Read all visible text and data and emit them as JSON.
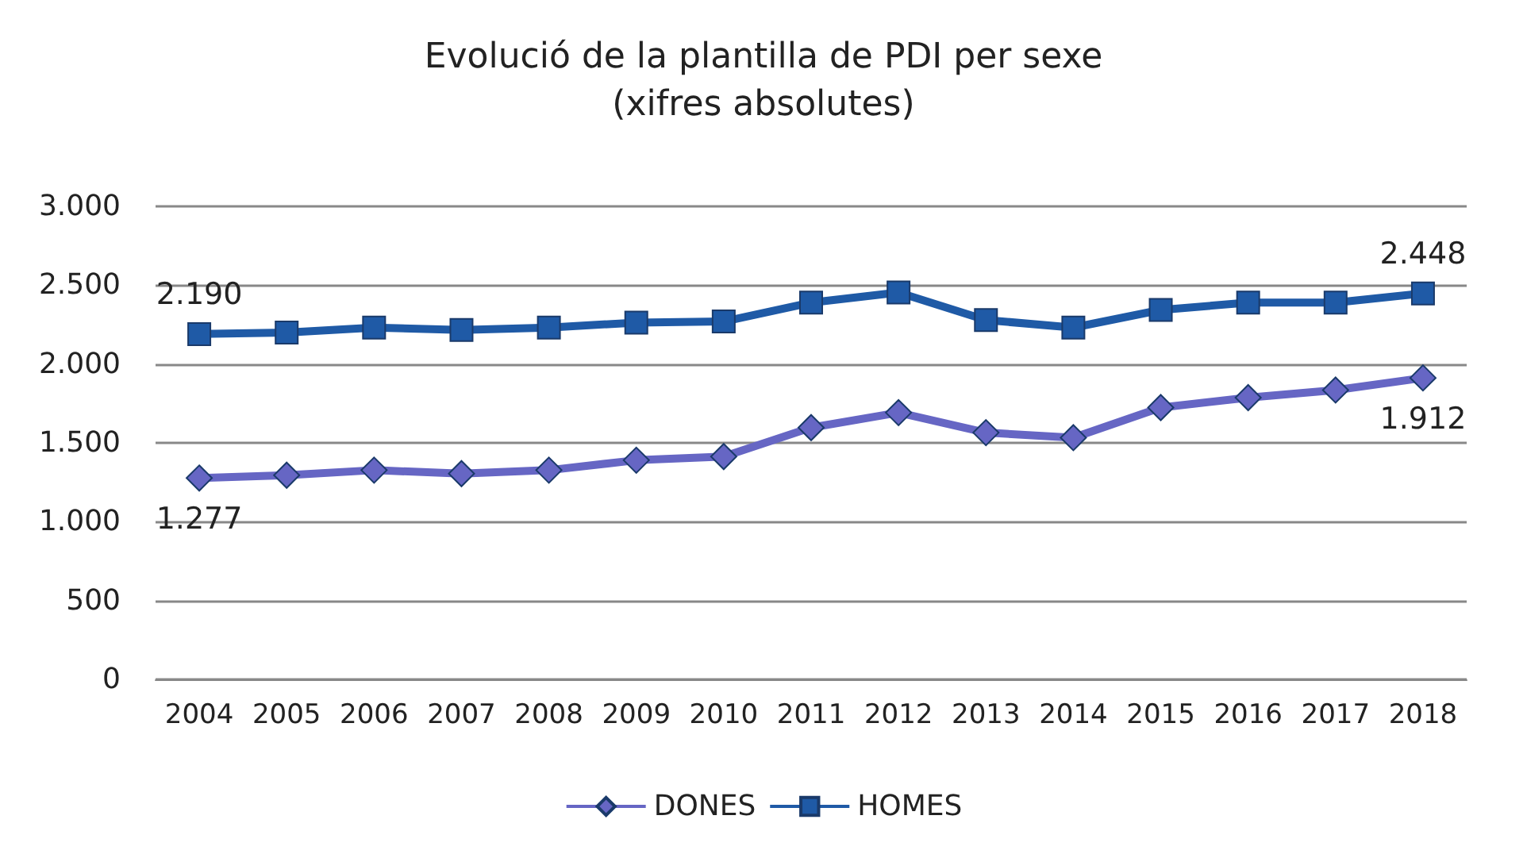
{
  "chart_data": {
    "type": "line",
    "title": "Evolució de la plantilla de PDI per sexe",
    "subtitle": "(xifres absolutes)",
    "categories": [
      "2004",
      "2005",
      "2006",
      "2007",
      "2008",
      "2009",
      "2010",
      "2011",
      "2012",
      "2013",
      "2014",
      "2015",
      "2016",
      "2017",
      "2018"
    ],
    "series": [
      {
        "name": "DONES",
        "color": "#6666c4",
        "marker": "diamond",
        "values": [
          1277,
          1295,
          1327,
          1305,
          1327,
          1390,
          1413,
          1597,
          1692,
          1565,
          1533,
          1724,
          1787,
          1835,
          1912
        ],
        "value_labels": [
          "1.277",
          null,
          null,
          null,
          null,
          null,
          null,
          null,
          null,
          null,
          null,
          null,
          null,
          null,
          "1.912"
        ]
      },
      {
        "name": "HOMES",
        "color": "#1f5aa6",
        "marker": "square",
        "values": [
          2190,
          2200,
          2231,
          2216,
          2231,
          2263,
          2270,
          2390,
          2454,
          2279,
          2231,
          2343,
          2390,
          2390,
          2448
        ],
        "value_labels": [
          "2.190",
          null,
          null,
          null,
          null,
          null,
          null,
          null,
          null,
          null,
          null,
          null,
          null,
          null,
          "2.448"
        ]
      }
    ],
    "ylim": [
      0,
      3000
    ],
    "yticks": [
      {
        "value": 0,
        "label": "0"
      },
      {
        "value": 500,
        "label": "500"
      },
      {
        "value": 1000,
        "label": "1.000"
      },
      {
        "value": 1500,
        "label": "1.500"
      },
      {
        "value": 2000,
        "label": "2.000"
      },
      {
        "value": 2500,
        "label": "2.500"
      },
      {
        "value": 3000,
        "label": "3.000"
      }
    ],
    "grid": "y",
    "legend": "bottom"
  }
}
